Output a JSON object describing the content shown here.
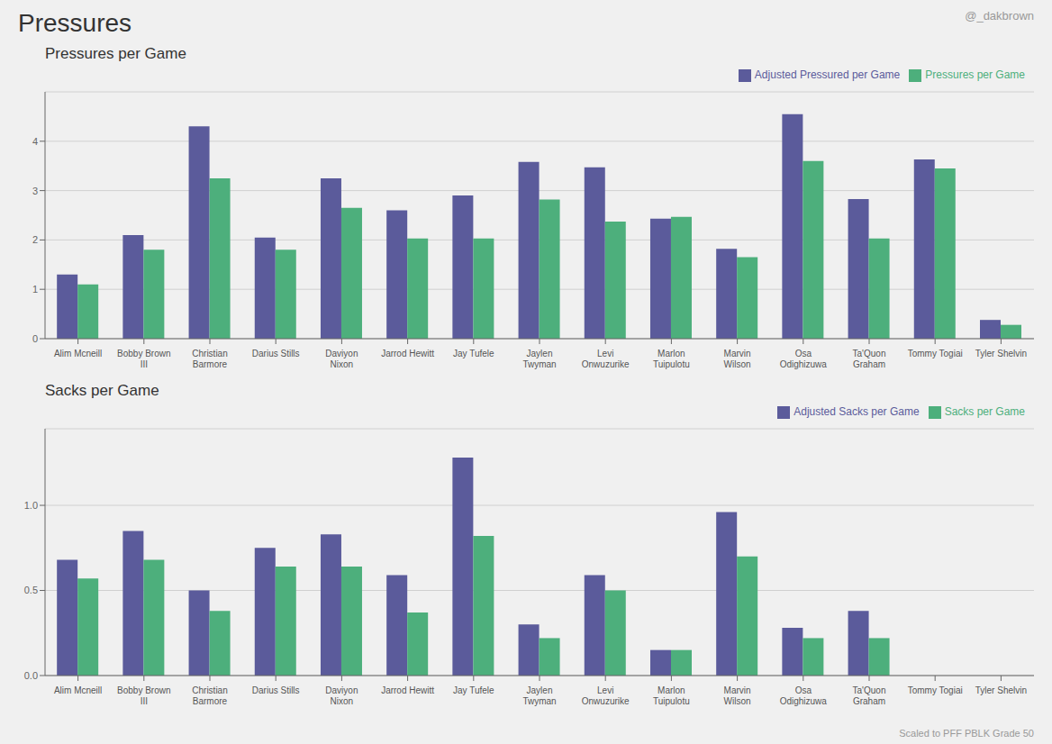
{
  "title": "Pressures",
  "subtitle": "@_dakbrown",
  "annotations": [
    "Scaled to PFF PBLK Grade 50"
  ],
  "chart_data": [
    {
      "type": "bar",
      "title": "Pressures per Game",
      "categories": [
        "Alim Mcneill",
        "Bobby Brown\nIII",
        "Christian\nBarmore",
        "Darius Stills",
        "Daviyon\nNixon",
        "Jarrod Hewitt",
        "Jay Tufele",
        "Jaylen\nTwyman",
        "Levi\nOnwuzurike",
        "Marlon\nTuipulotu",
        "Marvin\nWilson",
        "Osa\nOdighizuwa",
        "Ta'Quon\nGraham",
        "Tommy Togiai",
        "Tyler Shelvin"
      ],
      "series": [
        {
          "name": "Adjusted Pressured per Game",
          "color": "#5b5b9b",
          "values": [
            1.3,
            2.1,
            4.3,
            2.05,
            3.25,
            2.6,
            2.9,
            3.58,
            3.47,
            2.43,
            1.82,
            4.55,
            2.83,
            3.63,
            0.38
          ]
        },
        {
          "name": "Pressures per Game",
          "color": "#4daf7c",
          "values": [
            1.1,
            1.8,
            3.25,
            1.8,
            2.65,
            2.03,
            2.03,
            2.82,
            2.37,
            2.47,
            1.65,
            3.6,
            2.03,
            3.45,
            0.28
          ]
        }
      ],
      "ylim": [
        0,
        5
      ],
      "yticks": [
        0,
        1,
        2,
        3,
        4
      ],
      "grid": true,
      "legend": "upper right"
    },
    {
      "type": "bar",
      "title": "Sacks per Game",
      "categories": [
        "Alim Mcneill",
        "Bobby Brown\nIII",
        "Christian\nBarmore",
        "Darius Stills",
        "Daviyon\nNixon",
        "Jarrod Hewitt",
        "Jay Tufele",
        "Jaylen\nTwyman",
        "Levi\nOnwuzurike",
        "Marlon\nTuipulotu",
        "Marvin\nWilson",
        "Osa\nOdighizuwa",
        "Ta'Quon\nGraham",
        "Tommy Togiai",
        "Tyler Shelvin"
      ],
      "series": [
        {
          "name": "Adjusted Sacks per Game",
          "color": "#5b5b9b",
          "values": [
            0.68,
            0.85,
            0.5,
            0.75,
            0.83,
            0.59,
            1.28,
            0.3,
            0.59,
            0.15,
            0.96,
            0.28,
            0.38,
            0,
            0
          ]
        },
        {
          "name": "Sacks per Game",
          "color": "#4daf7c",
          "values": [
            0.57,
            0.68,
            0.38,
            0.64,
            0.64,
            0.37,
            0.82,
            0.22,
            0.5,
            0.15,
            0.7,
            0.22,
            0.22,
            0,
            0
          ]
        }
      ],
      "ylim": [
        0,
        1.45
      ],
      "yticks": [
        {
          "value": 0,
          "label": "0.0"
        },
        0.5,
        {
          "value": 1,
          "label": "1.0"
        }
      ],
      "grid": true,
      "legend": "upper right"
    }
  ]
}
